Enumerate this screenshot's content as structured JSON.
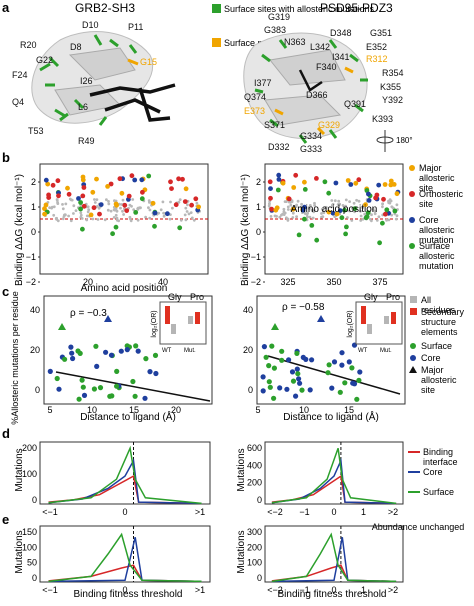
{
  "panel_letters": {
    "a": "a",
    "b": "b",
    "c": "c",
    "d": "d",
    "e": "e"
  },
  "colors": {
    "surface_green": "#2ca02c",
    "major_orange": "#f0a500",
    "orthosteric_red": "#d62728",
    "core_blue": "#1f3f9e",
    "all_residues_gray": "#b5b5b5",
    "secondary_red": "#e03020",
    "binding_red": "#d62728",
    "black": "#111111"
  },
  "panel_a": {
    "grb2_title": "GRB2-SH3",
    "psd95_title": "PSD95-PDZ3",
    "legend_surface": "Surface sites with allosteric mutations",
    "legend_major": "Surface major allosteric sites",
    "rotation_label": "180°",
    "grb2_residues": [
      {
        "t": "D10",
        "c": "#111"
      },
      {
        "t": "P11",
        "c": "#111"
      },
      {
        "t": "R20",
        "c": "#111"
      },
      {
        "t": "D8",
        "c": "#111"
      },
      {
        "t": "G22",
        "c": "#111"
      },
      {
        "t": "G15",
        "c": "#f0a500"
      },
      {
        "t": "F24",
        "c": "#111"
      },
      {
        "t": "I26",
        "c": "#111"
      },
      {
        "t": "Q4",
        "c": "#111"
      },
      {
        "t": "L6",
        "c": "#111"
      },
      {
        "t": "T53",
        "c": "#111"
      },
      {
        "t": "R49",
        "c": "#111"
      }
    ],
    "psd_residues": [
      {
        "t": "G319",
        "c": "#111"
      },
      {
        "t": "D348",
        "c": "#111"
      },
      {
        "t": "G351",
        "c": "#111"
      },
      {
        "t": "G383",
        "c": "#111"
      },
      {
        "t": "N363",
        "c": "#111"
      },
      {
        "t": "L342",
        "c": "#111"
      },
      {
        "t": "E352",
        "c": "#111"
      },
      {
        "t": "I341",
        "c": "#111"
      },
      {
        "t": "R312",
        "c": "#f0a500"
      },
      {
        "t": "F340",
        "c": "#111"
      },
      {
        "t": "R354",
        "c": "#111"
      },
      {
        "t": "I377",
        "c": "#111"
      },
      {
        "t": "K355",
        "c": "#111"
      },
      {
        "t": "Q374",
        "c": "#111"
      },
      {
        "t": "D366",
        "c": "#111"
      },
      {
        "t": "Y392",
        "c": "#111"
      },
      {
        "t": "E373",
        "c": "#f0a500"
      },
      {
        "t": "Q391",
        "c": "#111"
      },
      {
        "t": "S371",
        "c": "#111"
      },
      {
        "t": "G329",
        "c": "#f0a500"
      },
      {
        "t": "K393",
        "c": "#111"
      },
      {
        "t": "G334",
        "c": "#111"
      },
      {
        "t": "D332",
        "c": "#111"
      },
      {
        "t": "G333",
        "c": "#111"
      }
    ]
  },
  "panel_b": {
    "ylabel": "Binding ΔΔG (kcal mol⁻¹)",
    "xlabel": "Amino acid position",
    "left_yticks": [
      "2",
      "1",
      "0",
      "−1",
      "−2"
    ],
    "left_xticks": [
      "20",
      "40"
    ],
    "right_yticks": [
      "2",
      "1",
      "0",
      "−1",
      "−2"
    ],
    "right_xticks": [
      "325",
      "350",
      "375"
    ],
    "legend": [
      {
        "label": "Major allosteric site",
        "color": "#f0a500"
      },
      {
        "label": "Orthosteric site",
        "color": "#d62728"
      },
      {
        "label": "Core allosteric mutation",
        "color": "#1f3f9e"
      },
      {
        "label": "Surface allosteric mutation",
        "color": "#2ca02c"
      }
    ]
  },
  "panel_c": {
    "ylabel": "%Allosteric mutations per residue",
    "xlabel": "Distance to ligand (Å)",
    "left_rho": "ρ = −0.3",
    "right_rho": "ρ = −0.58",
    "left_yticks": [
      "40",
      "20",
      "0"
    ],
    "left_xticks": [
      "5",
      "10",
      "15",
      "20"
    ],
    "right_yticks": [
      "40",
      "20",
      "0"
    ],
    "right_xticks": [
      "5",
      "10",
      "15"
    ],
    "inset_ylabel": "log₂(OR)",
    "inset_gly": "Gly",
    "inset_pro": "Pro",
    "inset_x1": "WT",
    "inset_x2": "Mut.",
    "legend": [
      {
        "label": "All residues",
        "kind": "sq",
        "color": "#b5b5b5"
      },
      {
        "label": "Secondary structure elements",
        "kind": "sq",
        "color": "#e03020"
      },
      {
        "label": "Surface",
        "kind": "dot",
        "color": "#2ca02c"
      },
      {
        "label": "Core",
        "kind": "dot",
        "color": "#1f3f9e"
      },
      {
        "label": "Major allosteric site",
        "kind": "tri",
        "color": "#111111"
      }
    ]
  },
  "panel_d": {
    "ylabel": "Mutations",
    "left_yticks": [
      "200",
      "100",
      "0"
    ],
    "left_xticks": [
      "<−1",
      "0",
      ">1"
    ],
    "right_yticks": [
      "600",
      "400",
      "200",
      "0"
    ],
    "right_xticks": [
      "<−2",
      "−1",
      "0",
      "1",
      ">2"
    ],
    "legend": [
      {
        "label": "Binding interface",
        "color": "#d62728"
      },
      {
        "label": "Core",
        "color": "#1f3f9e"
      },
      {
        "label": "Surface",
        "color": "#2ca02c"
      }
    ]
  },
  "panel_e": {
    "ylabel": "Mutations",
    "xlabel": "Binding fitness threshold",
    "note": "Abundance unchanged",
    "left_yticks": [
      "150",
      "100",
      "50",
      "0"
    ],
    "left_xticks": [
      "<−1",
      "0",
      ">1"
    ],
    "right_yticks": [
      "300",
      "200",
      "100",
      "0"
    ],
    "right_xticks": [
      "<−2",
      "−1",
      "0",
      "1",
      ">2"
    ]
  }
}
